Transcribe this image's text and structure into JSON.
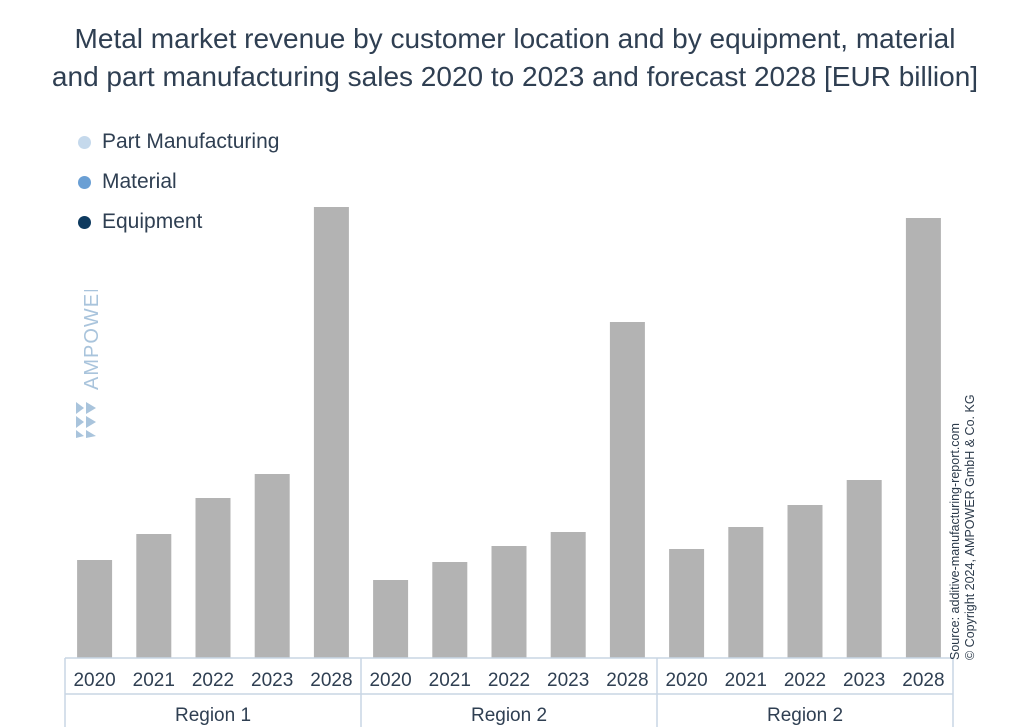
{
  "title_line1": "Metal market revenue by customer location and by equipment, material",
  "title_line2": "and part manufacturing sales 2020 to 2023 and forecast 2028 [EUR billion]",
  "legend": [
    {
      "label": "Part Manufacturing",
      "color": "#c5d9ec"
    },
    {
      "label": "Material",
      "color": "#6a9fd4"
    },
    {
      "label": "Equipment",
      "color": "#0e3a5f"
    }
  ],
  "watermark": "AMPOWER",
  "source_line1": "Source: additive-manufacturing-report.com",
  "source_line2": "© Copyright 2024, AMPOWER GmbH & Co. KG",
  "chart_data": {
    "type": "bar",
    "title": "Metal market revenue by customer location and by equipment, material and part manufacturing sales 2020 to 2023 and forecast 2028 [EUR billion]",
    "bar_color": "#b3b3b3",
    "groups": [
      {
        "name": "Region 1",
        "categories": [
          "2020",
          "2021",
          "2022",
          "2023",
          "2028"
        ],
        "values": [
          98,
          124,
          160,
          184,
          451
        ]
      },
      {
        "name": "Region 2",
        "categories": [
          "2020",
          "2021",
          "2022",
          "2023",
          "2028"
        ],
        "values": [
          78,
          96,
          112,
          126,
          336
        ]
      },
      {
        "name": "Region 2",
        "categories": [
          "2020",
          "2021",
          "2022",
          "2023",
          "2028"
        ],
        "values": [
          109,
          131,
          153,
          178,
          440
        ]
      }
    ],
    "ylim": [
      0,
      460
    ],
    "grid": false,
    "legend_position": "top-left"
  }
}
